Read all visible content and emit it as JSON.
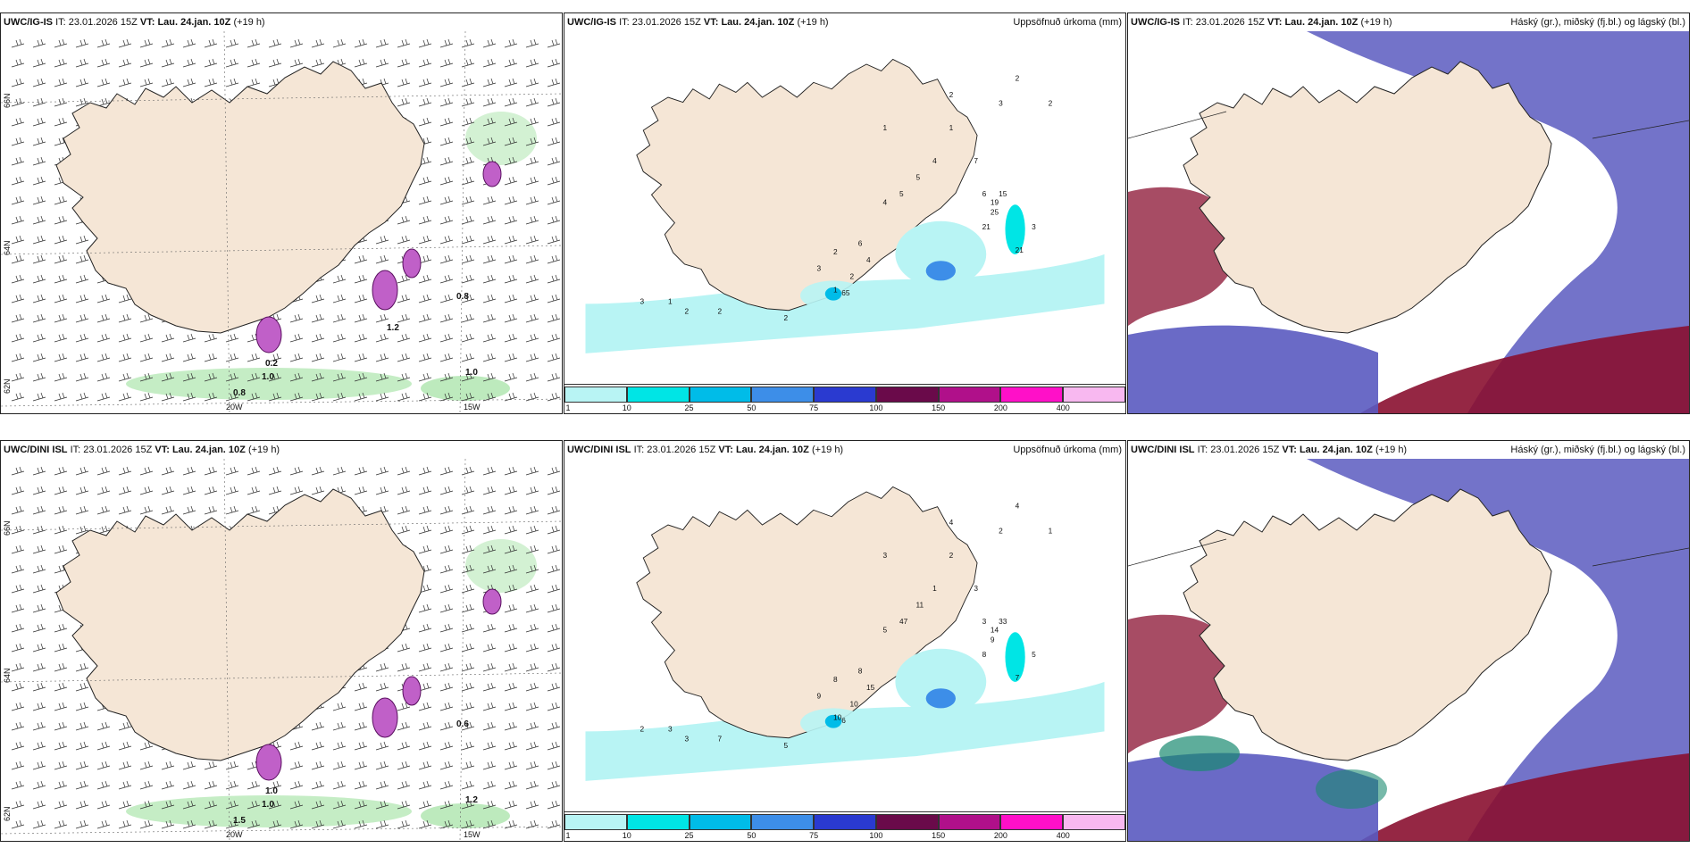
{
  "panels": [
    {
      "id": "top-left",
      "model": "UWC/IG-IS",
      "it_label": "IT:",
      "it_value": "23.01.2026 15Z",
      "vt_label": "VT:",
      "vt_value": "Lau. 24.jan. 10Z",
      "lead": "(+19 h)",
      "right_title": "",
      "kind": "wind",
      "lat_labels": [
        "66N",
        "64N",
        "62N"
      ],
      "lon_labels": [
        "20W",
        "15W"
      ],
      "value_labels": [
        "0.8",
        "0.8",
        "1.0",
        "0.2",
        "1.0",
        "1.2"
      ]
    },
    {
      "id": "top-middle",
      "model": "UWC/IG-IS",
      "it_label": "IT:",
      "it_value": "23.01.2026 15Z",
      "vt_label": "VT:",
      "vt_value": "Lau. 24.jan. 10Z",
      "lead": "(+19 h)",
      "right_title": "Uppsöfnuð úrkoma (mm)",
      "kind": "precip",
      "value_labels": [
        "3",
        "1",
        "2",
        "2",
        "2",
        "1",
        "2",
        "3",
        "2",
        "6",
        "4",
        "15",
        "19",
        "25",
        "21",
        "21",
        "3",
        "2",
        "7",
        "6",
        "4",
        "5",
        "5",
        "4",
        "1",
        "1",
        "3",
        "2",
        "2",
        "65"
      ]
    },
    {
      "id": "top-right",
      "model": "UWC/IG-IS",
      "it_label": "IT:",
      "it_value": "23.01.2026 15Z",
      "vt_label": "VT:",
      "vt_value": "Lau. 24.jan. 10Z",
      "lead": "(+19 h)",
      "right_title": "Háský (gr.), miðský (fj.bl.) og lágský (bl.)",
      "kind": "cloud"
    },
    {
      "id": "bottom-left",
      "model": "UWC/DINI ISL",
      "it_label": "IT:",
      "it_value": "23.01.2026 15Z",
      "vt_label": "VT:",
      "vt_value": "Lau. 24.jan. 10Z",
      "lead": "(+19 h)",
      "right_title": "",
      "kind": "wind",
      "lat_labels": [
        "66N",
        "64N",
        "62N"
      ],
      "lon_labels": [
        "20W",
        "15W"
      ],
      "value_labels": [
        "0.6",
        "1.5",
        "1.0",
        "1.0",
        "1.2"
      ]
    },
    {
      "id": "bottom-middle",
      "model": "UWC/DINI ISL",
      "it_label": "IT:",
      "it_value": "23.01.2026 15Z",
      "vt_label": "VT:",
      "vt_value": "Lau. 24.jan. 10Z",
      "lead": "(+19 h)",
      "right_title": "Uppsöfnuð úrkoma (mm)",
      "kind": "precip",
      "value_labels": [
        "2",
        "3",
        "3",
        "7",
        "5",
        "10",
        "10",
        "9",
        "8",
        "8",
        "15",
        "33",
        "14",
        "9",
        "8",
        "7",
        "5",
        "4",
        "3",
        "3",
        "1",
        "11",
        "47",
        "5",
        "3",
        "2",
        "2",
        "1",
        "4",
        "6"
      ]
    },
    {
      "id": "bottom-right",
      "model": "UWC/DINI ISL",
      "it_label": "IT:",
      "it_value": "23.01.2026 15Z",
      "vt_label": "VT:",
      "vt_value": "Lau. 24.jan. 10Z",
      "lead": "(+19 h)",
      "right_title": "Háský (gr.), miðský (fj.bl.) og lágský (bl.)",
      "kind": "cloud"
    }
  ],
  "precip_legend": {
    "ticks": [
      "1",
      "10",
      "25",
      "50",
      "75",
      "100",
      "150",
      "200",
      "400"
    ],
    "colors": [
      "#b8f4f4",
      "#00e5e5",
      "#00bce8",
      "#3d8ee8",
      "#2a3ad0",
      "#6a0a4a",
      "#b0108a",
      "#ff10c8",
      "#f8b8f0"
    ]
  },
  "colors": {
    "land": "#f5e6d6",
    "coast": "#222222",
    "precip_light": "#b8f4f4",
    "wind_green": "#b6e8b6",
    "magenta": "#c060c8",
    "cloud_high": "#1a8a70",
    "cloud_mid": "#5a5ac0",
    "cloud_low": "#8a1030"
  }
}
